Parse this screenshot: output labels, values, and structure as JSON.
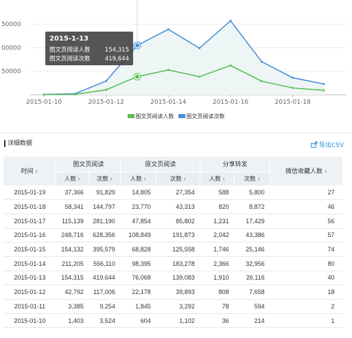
{
  "chart_data": {
    "type": "line",
    "x": [
      "2015-01-10",
      "2015-01-11",
      "2015-01-12",
      "2015-01-13",
      "2015-01-14",
      "2015-01-15",
      "2015-01-16",
      "2015-01-17",
      "2015-01-18",
      "2015-01-19"
    ],
    "x_tick_labels": [
      "2015-01-10",
      "2015-01-12",
      "2015-01-14",
      "2015-01-16",
      "2015-01-18"
    ],
    "y_tick_labels": [
      "50000",
      "00000",
      "50000"
    ],
    "ylim": [
      0,
      700000
    ],
    "series": [
      {
        "name": "图文页阅读人数",
        "color": "#5cbf5a",
        "values": [
          1403,
          3385,
          42792,
          154315,
          211205,
          154132,
          248716,
          115139,
          58341,
          37366
        ]
      },
      {
        "name": "图文页阅读次数",
        "color": "#4a8fdb",
        "values": [
          3524,
          9254,
          117006,
          419644,
          556110,
          395579,
          628356,
          281190,
          144797,
          91829
        ]
      }
    ],
    "highlight_index": 3
  },
  "tooltip": {
    "date": "2015-1-13",
    "rows": [
      {
        "label": "图文页阅读人数",
        "value": "154,315"
      },
      {
        "label": "图文页阅读次数",
        "value": "419,644"
      }
    ]
  },
  "legend": [
    {
      "label": "图文页阅读人数",
      "color": "#5cbf5a"
    },
    {
      "label": "图文页阅读次数",
      "color": "#4a8fdb"
    }
  ],
  "section": {
    "title": "详细数据",
    "export_label": "导出CSV"
  },
  "table": {
    "col_time": "时间",
    "group_1": "图文页阅读",
    "group_2": "原文页阅读",
    "group_3": "分享转发",
    "col_fav": "微信收藏人数",
    "sub_people": "人数",
    "sub_times": "次数",
    "rows": [
      [
        "2015-01-19",
        "37,366",
        "91,829",
        "14,805",
        "27,354",
        "588",
        "5,800",
        "27"
      ],
      [
        "2015-01-18",
        "58,341",
        "144,797",
        "23,770",
        "43,313",
        "820",
        "8,872",
        "46"
      ],
      [
        "2015-01-17",
        "115,139",
        "281,190",
        "47,854",
        "85,802",
        "1,231",
        "17,429",
        "56"
      ],
      [
        "2015-01-16",
        "248,716",
        "628,356",
        "108,849",
        "191,873",
        "2,042",
        "43,386",
        "57"
      ],
      [
        "2015-01-15",
        "154,132",
        "395,579",
        "68,828",
        "125,558",
        "1,746",
        "25,146",
        "74"
      ],
      [
        "2015-01-14",
        "211,205",
        "556,110",
        "98,395",
        "183,278",
        "2,366",
        "32,956",
        "80"
      ],
      [
        "2015-01-13",
        "154,315",
        "419,644",
        "76,068",
        "139,083",
        "1,910",
        "26,116",
        "40"
      ],
      [
        "2015-01-12",
        "42,792",
        "117,006",
        "22,178",
        "39,893",
        "808",
        "7,658",
        "18"
      ],
      [
        "2015-01-11",
        "3,385",
        "9,254",
        "1,845",
        "3,292",
        "78",
        "594",
        "2"
      ],
      [
        "2015-01-10",
        "1,403",
        "3,524",
        "604",
        "1,102",
        "36",
        "214",
        "1"
      ]
    ]
  }
}
